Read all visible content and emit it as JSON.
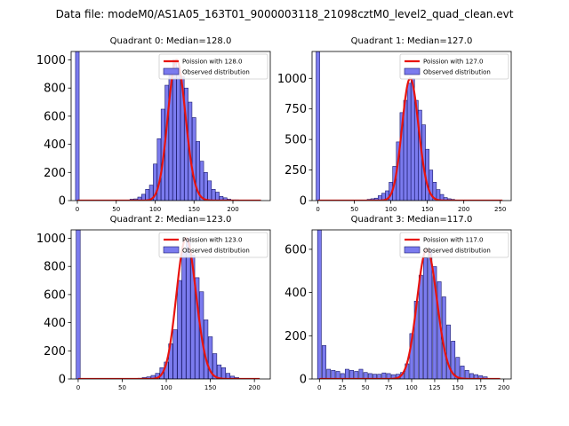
{
  "suptitle": "Data file: modeM0/AS1A05_163T01_9000003118_21098cztM0_level2_quad_clean.evt",
  "colors": {
    "bar_fill": "#7b7bee",
    "bar_edge": "#1a1a6e",
    "curve": "#e8140f"
  },
  "chart_data": [
    {
      "type": "bar",
      "title": "Quadrant 0: Median=128.0",
      "median": 128.0,
      "legend": [
        "Poission with 128.0",
        "Observed distribution"
      ],
      "legend_position": "top-right",
      "bin_width": 4.7,
      "xlim": [
        -8,
        248
      ],
      "ylim": [
        0,
        1060
      ],
      "xticks": [
        0,
        50,
        100,
        150,
        200
      ],
      "yticks": [
        0,
        200,
        400,
        600,
        800,
        1000
      ],
      "bins": [
        [
          0,
          1060
        ],
        [
          70,
          10
        ],
        [
          75,
          12
        ],
        [
          80,
          25
        ],
        [
          85,
          45
        ],
        [
          90,
          80
        ],
        [
          95,
          110
        ],
        [
          100,
          260
        ],
        [
          105,
          440
        ],
        [
          110,
          650
        ],
        [
          115,
          820
        ],
        [
          120,
          890
        ],
        [
          125,
          1000
        ],
        [
          130,
          950
        ],
        [
          135,
          880
        ],
        [
          140,
          800
        ],
        [
          145,
          700
        ],
        [
          150,
          590
        ],
        [
          155,
          420
        ],
        [
          160,
          280
        ],
        [
          165,
          200
        ],
        [
          170,
          140
        ],
        [
          175,
          80
        ],
        [
          180,
          60
        ],
        [
          185,
          30
        ],
        [
          190,
          20
        ],
        [
          195,
          10
        ],
        [
          200,
          5
        ],
        [
          205,
          5
        ]
      ]
    },
    {
      "type": "bar",
      "title": "Quadrant 1: Median=127.0",
      "median": 127.0,
      "legend": [
        "Poission with 127.0",
        "Observed distribution"
      ],
      "legend_position": "top-right",
      "bin_width": 4.9,
      "xlim": [
        -8,
        265
      ],
      "ylim": [
        0,
        1220
      ],
      "xticks": [
        0,
        50,
        100,
        150,
        200,
        250
      ],
      "yticks": [
        0,
        250,
        500,
        750,
        1000
      ],
      "bins": [
        [
          0,
          1220
        ],
        [
          70,
          10
        ],
        [
          75,
          15
        ],
        [
          80,
          20
        ],
        [
          85,
          40
        ],
        [
          90,
          60
        ],
        [
          95,
          80
        ],
        [
          100,
          150
        ],
        [
          105,
          280
        ],
        [
          110,
          480
        ],
        [
          115,
          720
        ],
        [
          120,
          820
        ],
        [
          125,
          960
        ],
        [
          130,
          1000
        ],
        [
          135,
          820
        ],
        [
          140,
          740
        ],
        [
          145,
          620
        ],
        [
          150,
          420
        ],
        [
          155,
          250
        ],
        [
          160,
          150
        ],
        [
          165,
          90
        ],
        [
          170,
          50
        ],
        [
          175,
          25
        ],
        [
          180,
          15
        ],
        [
          185,
          10
        ]
      ]
    },
    {
      "type": "bar",
      "title": "Quadrant 2: Median=123.0",
      "median": 123.0,
      "legend": [
        "Poission with 123.0",
        "Observed distribution"
      ],
      "legend_position": "top-right",
      "bin_width": 4.6,
      "xlim": [
        -8,
        218
      ],
      "ylim": [
        0,
        1060
      ],
      "xticks": [
        0,
        50,
        100,
        150,
        200
      ],
      "yticks": [
        0,
        200,
        400,
        600,
        800,
        1000
      ],
      "bins": [
        [
          0,
          1060
        ],
        [
          70,
          5
        ],
        [
          75,
          10
        ],
        [
          80,
          15
        ],
        [
          85,
          25
        ],
        [
          90,
          40
        ],
        [
          95,
          80
        ],
        [
          100,
          120
        ],
        [
          105,
          250
        ],
        [
          110,
          350
        ],
        [
          115,
          700
        ],
        [
          120,
          900
        ],
        [
          125,
          1000
        ],
        [
          130,
          880
        ],
        [
          135,
          720
        ],
        [
          140,
          620
        ],
        [
          145,
          420
        ],
        [
          150,
          300
        ],
        [
          155,
          180
        ],
        [
          160,
          100
        ],
        [
          165,
          80
        ],
        [
          170,
          40
        ],
        [
          175,
          20
        ],
        [
          180,
          10
        ]
      ]
    },
    {
      "type": "bar",
      "title": "Quadrant 3: Median=117.0",
      "median": 117.0,
      "legend": [
        "Poission with 117.0",
        "Observed distribution"
      ],
      "legend_position": "top-right",
      "bin_width": 4.1,
      "xlim": [
        -8,
        208
      ],
      "ylim": [
        0,
        690
      ],
      "xticks": [
        0,
        25,
        50,
        75,
        100,
        125,
        150,
        175,
        200
      ],
      "yticks": [
        0,
        200,
        400,
        600
      ],
      "bins": [
        [
          0,
          690
        ],
        [
          5,
          155
        ],
        [
          10,
          45
        ],
        [
          15,
          40
        ],
        [
          20,
          35
        ],
        [
          25,
          25
        ],
        [
          30,
          45
        ],
        [
          35,
          40
        ],
        [
          40,
          35
        ],
        [
          45,
          45
        ],
        [
          50,
          30
        ],
        [
          55,
          25
        ],
        [
          60,
          22
        ],
        [
          65,
          22
        ],
        [
          70,
          28
        ],
        [
          75,
          25
        ],
        [
          80,
          20
        ],
        [
          85,
          22
        ],
        [
          90,
          30
        ],
        [
          95,
          70
        ],
        [
          100,
          210
        ],
        [
          105,
          360
        ],
        [
          110,
          480
        ],
        [
          115,
          560
        ],
        [
          120,
          600
        ],
        [
          125,
          520
        ],
        [
          130,
          450
        ],
        [
          135,
          380
        ],
        [
          140,
          250
        ],
        [
          145,
          175
        ],
        [
          150,
          100
        ],
        [
          155,
          60
        ],
        [
          160,
          40
        ],
        [
          165,
          25
        ],
        [
          170,
          20
        ],
        [
          175,
          15
        ],
        [
          180,
          10
        ]
      ]
    }
  ]
}
